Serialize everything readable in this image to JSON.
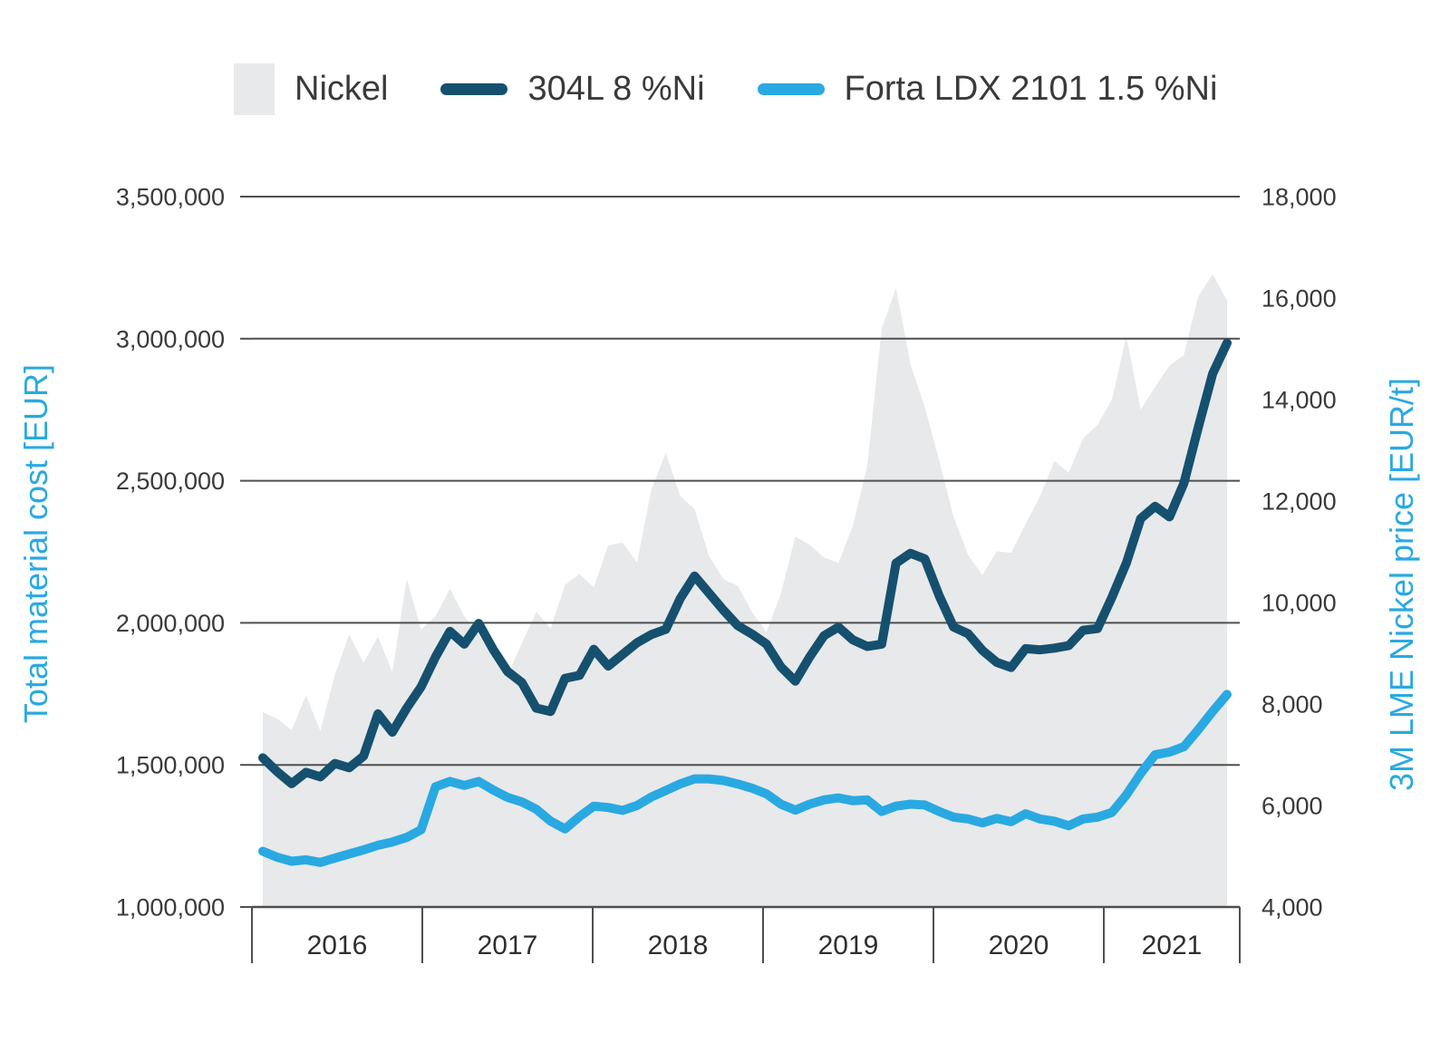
{
  "legend": {
    "nickel": "Nickel",
    "dark_line": "304L 8 %Ni",
    "light_line": "Forta LDX 2101 1.5 %Ni"
  },
  "colors": {
    "area": "#e8e9ea",
    "dark_line": "#15506f",
    "light_line": "#29a9e1",
    "axis_title": "#29a9e1",
    "grid": "#4f4f4f",
    "tick_text": "#3a3a3a"
  },
  "chart_data": {
    "type": "area",
    "subtype": "monthly area + two lines, dual y-axes",
    "x": {
      "start": "2016-01",
      "end": "2021-08",
      "interval": "monthly",
      "count": 68
    },
    "x_year_labels": [
      "2016",
      "2017",
      "2018",
      "2019",
      "2020",
      "2021"
    ],
    "left_axis": {
      "title": "Total material cost [EUR]",
      "min": 1000000,
      "max": 3500000,
      "tick_step": 500000,
      "ticks": [
        {
          "value": 1000000,
          "label": "1,000,000"
        },
        {
          "value": 1500000,
          "label": "1,500,000"
        },
        {
          "value": 2000000,
          "label": "2,000,000"
        },
        {
          "value": 2500000,
          "label": "2,500,000"
        },
        {
          "value": 3000000,
          "label": "3,000,000"
        },
        {
          "value": 3500000,
          "label": "3,500,000"
        }
      ],
      "gridlines_at": [
        1500000,
        2000000,
        2500000,
        3000000,
        3500000
      ]
    },
    "right_axis": {
      "title": "3M LME Nickel price [EUR/t]",
      "min": 4000,
      "max": 18000,
      "tick_step": 2000,
      "ticks": [
        {
          "value": 4000,
          "label": "4,000"
        },
        {
          "value": 6000,
          "label": "6,000"
        },
        {
          "value": 8000,
          "label": "8,000"
        },
        {
          "value": 10000,
          "label": "10,000"
        },
        {
          "value": 12000,
          "label": "12,000"
        },
        {
          "value": 14000,
          "label": "14,000"
        },
        {
          "value": 16000,
          "label": "16,000"
        },
        {
          "value": 18000,
          "label": "18,000"
        }
      ]
    },
    "series": [
      {
        "name": "Nickel",
        "type": "area",
        "axis": "right",
        "color": "#e8e9ea",
        "values": [
          7840,
          7710,
          7490,
          8170,
          7470,
          8570,
          9370,
          8810,
          9330,
          8630,
          10470,
          9470,
          9730,
          10270,
          9730,
          9370,
          8900,
          8570,
          9200,
          9820,
          9490,
          10350,
          10560,
          10300,
          11130,
          11180,
          10790,
          12230,
          12950,
          12100,
          11840,
          10920,
          10460,
          10330,
          9810,
          9420,
          10180,
          11300,
          11140,
          10890,
          10780,
          11510,
          12700,
          15400,
          16200,
          14700,
          13850,
          12800,
          11690,
          10940,
          10540,
          11010,
          10980,
          11550,
          12090,
          12790,
          12560,
          13240,
          13500,
          14000,
          15250,
          13800,
          14250,
          14670,
          14880,
          16030,
          16470,
          15950
        ]
      },
      {
        "name": "304L 8 %Ni",
        "type": "line",
        "axis": "left",
        "color": "#15506f",
        "values": [
          1525000,
          1476000,
          1434000,
          1474000,
          1458000,
          1505000,
          1490000,
          1531000,
          1680000,
          1615000,
          1700000,
          1775000,
          1880000,
          1970000,
          1925000,
          1998000,
          1907000,
          1829000,
          1790000,
          1700000,
          1688000,
          1805000,
          1815000,
          1907000,
          1848000,
          1889000,
          1930000,
          1959000,
          1977000,
          2085000,
          2165000,
          2105000,
          2045000,
          1990000,
          1960000,
          1925000,
          1845000,
          1795000,
          1880000,
          1955000,
          1985000,
          1940000,
          1917000,
          1925000,
          2210000,
          2245000,
          2225000,
          2095000,
          1985000,
          1962000,
          1903000,
          1861000,
          1843000,
          1909000,
          1905000,
          1911000,
          1920000,
          1974000,
          1980000,
          2090000,
          2210000,
          2367000,
          2410000,
          2373000,
          2491000,
          2688000,
          2877000,
          2985000
        ]
      },
      {
        "name": "Forta LDX 2101 1.5 %Ni",
        "type": "line",
        "axis": "left",
        "color": "#29a9e1",
        "values": [
          1196000,
          1175000,
          1161000,
          1166000,
          1157000,
          1172000,
          1187000,
          1201000,
          1217000,
          1229000,
          1245000,
          1272000,
          1423000,
          1442000,
          1428000,
          1442000,
          1412000,
          1386000,
          1370000,
          1344000,
          1302000,
          1275000,
          1318000,
          1355000,
          1350000,
          1340000,
          1357000,
          1387000,
          1410000,
          1433000,
          1451000,
          1451000,
          1445000,
          1433000,
          1418000,
          1398000,
          1362000,
          1341000,
          1362000,
          1377000,
          1384000,
          1374000,
          1377000,
          1336000,
          1355000,
          1362000,
          1359000,
          1336000,
          1316000,
          1310000,
          1296000,
          1312000,
          1300000,
          1328000,
          1310000,
          1302000,
          1286000,
          1310000,
          1316000,
          1333000,
          1394000,
          1470000,
          1536000,
          1545000,
          1564000,
          1624000,
          1688000,
          1748000
        ]
      }
    ],
    "legend_position": "top",
    "grid": "horizontal only"
  }
}
